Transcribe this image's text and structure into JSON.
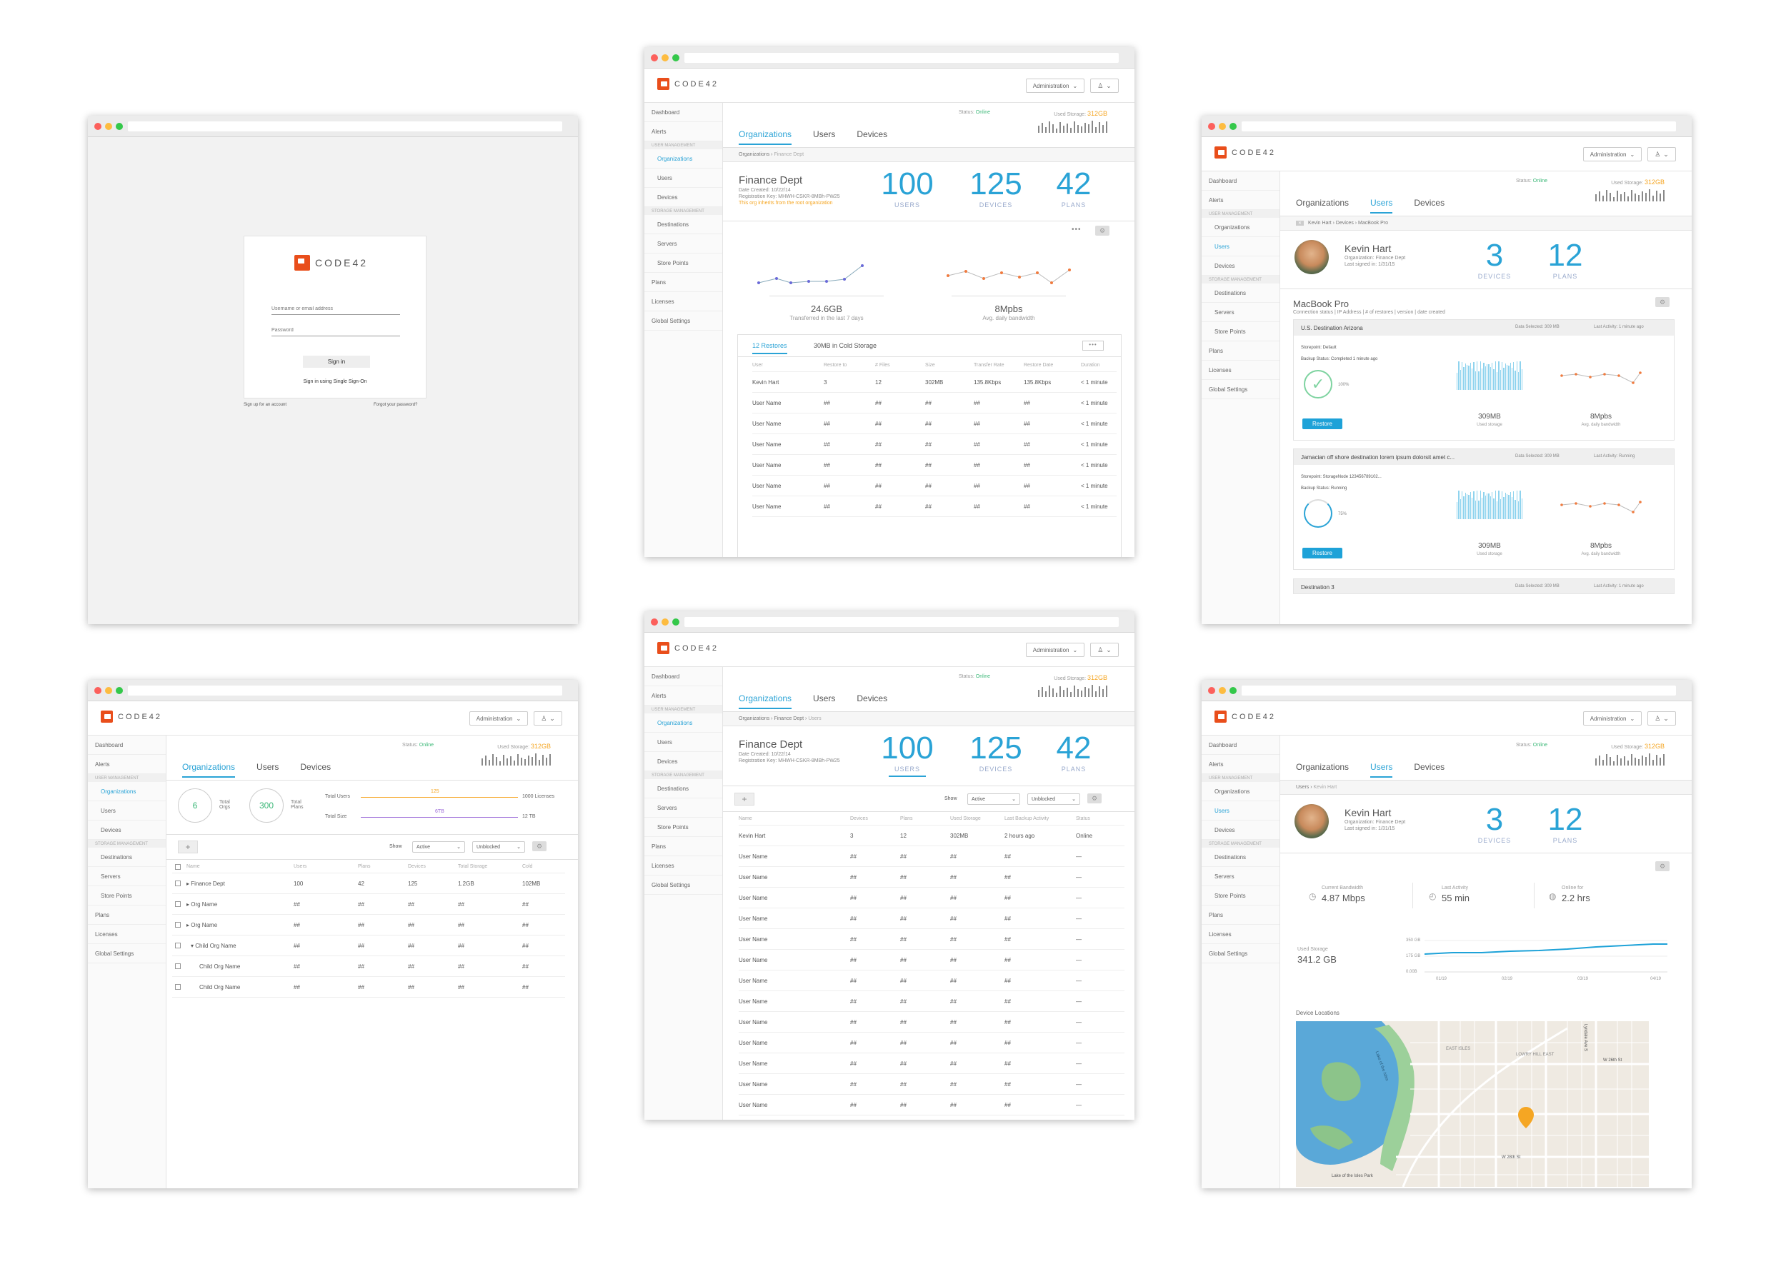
{
  "brand": {
    "logo_text": "CODE42",
    "accent": "#2aa3d6",
    "brand_color": "#e94e1b"
  },
  "login": {
    "username_placeholder": "Username or email address",
    "password_placeholder": "Password",
    "sign_in": "Sign in",
    "sso": "Sign in using Single Sign-On",
    "signup": "Sign up for an account",
    "forgot": "Forgot your password?"
  },
  "common": {
    "admin_menu": "Administration",
    "status_label": "Status:",
    "status_value": "Online",
    "storage_label": "Used Storage:",
    "storage_value": "312GB",
    "tabs": [
      "Organizations",
      "Users",
      "Devices"
    ],
    "sidebar": {
      "dashboard": "Dashboard",
      "alerts": "Alerts",
      "user_mgmt": "User Management",
      "organizations": "Organizations",
      "users": "Users",
      "devices": "Devices",
      "storage_mgmt": "Storage Management",
      "destinations": "Destinations",
      "servers": "Servers",
      "store_points": "Store Points",
      "plans": "Plans",
      "licenses": "Licenses",
      "global_settings": "Global Settings"
    }
  },
  "org_detail": {
    "crumb_root": "Organizations",
    "crumb_leaf": "Finance Dept",
    "name": "Finance Dept",
    "created": "Date Created: 10/22/14",
    "reg_key": "Registration Key: MHWH-CSKR-8MBh-PW25",
    "inherit": "This org inherits from the root organization",
    "users": "100",
    "users_lbl": "USERS",
    "devices": "125",
    "devices_lbl": "DEVICES",
    "plans": "42",
    "plans_lbl": "PLANS",
    "transferred": "24.6GB",
    "transferred_lbl": "Transferred in the last 7 days",
    "bandwidth": "8Mpbs",
    "bandwidth_lbl": "Avg. daily bandwidth",
    "restores_tab": "12 Restores",
    "cold_tab": "30MB in Cold Storage",
    "restore_headers": [
      "User",
      "Restore to",
      "# Files",
      "Size",
      "Transfer Rate",
      "Restore Date",
      "Duration"
    ],
    "restore_rows": [
      [
        "Kevin Hart",
        "3",
        "12",
        "302MB",
        "135.8Kbps",
        "135.8Kbps",
        "< 1 minute"
      ],
      [
        "User Name",
        "##",
        "##",
        "##",
        "##",
        "##",
        "< 1 minute"
      ],
      [
        "User Name",
        "##",
        "##",
        "##",
        "##",
        "##",
        "< 1 minute"
      ],
      [
        "User Name",
        "##",
        "##",
        "##",
        "##",
        "##",
        "< 1 minute"
      ],
      [
        "User Name",
        "##",
        "##",
        "##",
        "##",
        "##",
        "< 1 minute"
      ],
      [
        "User Name",
        "##",
        "##",
        "##",
        "##",
        "##",
        "< 1 minute"
      ],
      [
        "User Name",
        "##",
        "##",
        "##",
        "##",
        "##",
        "< 1 minute"
      ]
    ]
  },
  "user_devices": {
    "crumb": "Kevin Hart › Devices › MacBook Pro",
    "name": "Kevin Hart",
    "org": "Organization: Finance Dept",
    "signed": "Last signed in: 1/31/15",
    "devices": "3",
    "devices_lbl": "DEVICES",
    "plans": "12",
    "plans_lbl": "PLANS",
    "device_name": "MacBook Pro",
    "device_meta": "Connection status | IP Address | # of restores | version | date created",
    "dest1": {
      "name": "U.S. Destination Arizona",
      "data": "Data Selected: 309 MB",
      "activity": "Last Activity: 1 minute ago",
      "storepoint": "Storepoint: Default",
      "backup": "Backup Status: Completed 1 minute ago",
      "pct": "100%",
      "storage": "309MB",
      "storage_lbl": "Used storage",
      "bw": "8Mpbs",
      "bw_lbl": "Avg. daily bandwidth",
      "restore": "Restore"
    },
    "dest2": {
      "name": "Jamacian off shore destination lorem ipsum dolorsit amet c...",
      "data": "Data Selected: 309 MB",
      "activity": "Last Activity: Running",
      "storepoint": "Storepoint: StorageNode 123456789102...",
      "backup": "Backup Status: Running",
      "pct": "75%",
      "storage": "309MB",
      "storage_lbl": "Used storage",
      "bw": "8Mpbs",
      "bw_lbl": "Avg. daily bandwidth",
      "restore": "Restore"
    },
    "dest3": {
      "name": "Destination 3",
      "data": "Data Selected: 309 MB",
      "activity": "Last Activity: 1 minute ago"
    }
  },
  "org_list": {
    "total_orgs": "6",
    "total_orgs_lbl": "Total Orgs",
    "total_plans": "300",
    "total_plans_lbl": "Total Plans",
    "total_users_lbl": "Total Users",
    "total_users_val": "125",
    "licenses": "1000 Licenses",
    "total_size_lbl": "Total Size",
    "total_size_val": "6TB",
    "size_max": "12 TB",
    "show": "Show",
    "active": "Active",
    "unblocked": "Unblocked",
    "headers": [
      "Name",
      "Users",
      "Plans",
      "Devices",
      "Total Storage",
      "Cold"
    ],
    "rows": [
      {
        "name": "▸ Finance Dept",
        "cells": [
          "100",
          "42",
          "125",
          "1.2GB",
          "102MB"
        ]
      },
      {
        "name": "▸ Org Name",
        "cells": [
          "##",
          "##",
          "##",
          "##",
          "##"
        ]
      },
      {
        "name": "▸ Org Name",
        "cells": [
          "##",
          "##",
          "##",
          "##",
          "##"
        ]
      },
      {
        "name": "▾ Child Org Name",
        "cells": [
          "##",
          "##",
          "##",
          "##",
          "##"
        ]
      },
      {
        "name": "Child Org Name",
        "cells": [
          "##",
          "##",
          "##",
          "##",
          "##"
        ]
      },
      {
        "name": "Child Org Name",
        "cells": [
          "##",
          "##",
          "##",
          "##",
          "##"
        ]
      }
    ]
  },
  "org_users": {
    "crumb_root": "Organizations",
    "crumb_mid": "Finance Dept",
    "crumb_leaf": "Users",
    "name": "Finance Dept",
    "created": "Date Created: 10/22/14",
    "reg_key": "Registration Key: MHWH-CSKR-8MBh-PW25",
    "users": "100",
    "users_lbl": "USERS",
    "devices": "125",
    "devices_lbl": "DEVICES",
    "plans": "42",
    "plans_lbl": "PLANS",
    "show": "Show",
    "active": "Active",
    "unblocked": "Unblocked",
    "headers": [
      "Name",
      "Devices",
      "Plans",
      "Used Storage",
      "Last Backup Activity",
      "Status"
    ],
    "first_row": [
      "Kevin Hart",
      "3",
      "12",
      "302MB",
      "2 hours ago",
      "Online"
    ],
    "row_name": "User Name",
    "row_val": "##",
    "row_status": "—",
    "row_count": 13
  },
  "user_overview": {
    "crumb_root": "Users",
    "crumb_leaf": "Kevin Hart",
    "name": "Kevin Hart",
    "org": "Organization: Finance Dept",
    "signed": "Last signed in: 1/31/15",
    "devices": "3",
    "devices_lbl": "DEVICES",
    "plans": "12",
    "plans_lbl": "PLANS",
    "cur_bw_lbl": "Current Bandwidth",
    "cur_bw": "4.87 Mbps",
    "last_act_lbl": "Last Activity",
    "last_act": "55 min",
    "online_lbl": "Online for",
    "online": "2.2 hrs",
    "used_lbl": "Used Storage",
    "used": "341.2 GB",
    "y_ticks": [
      "350 GB",
      "175 GB",
      "0.00B"
    ],
    "x_ticks": [
      "01/19",
      "02/19",
      "03/19",
      "04/19"
    ],
    "loc_title": "Device Locations",
    "map_labels": [
      "W 26th St",
      "W 28th St",
      "Lake of the Isles",
      "Lake of the Isles Park",
      "EAST ISLES",
      "LOWRY HILL EAST",
      "Lyndale Ave S"
    ]
  }
}
